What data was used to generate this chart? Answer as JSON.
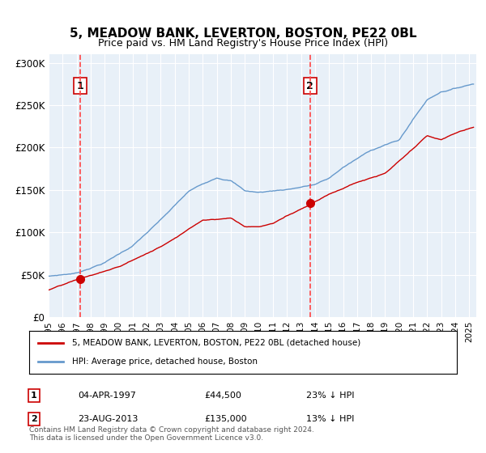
{
  "title": "5, MEADOW BANK, LEVERTON, BOSTON, PE22 0BL",
  "subtitle": "Price paid vs. HM Land Registry's House Price Index (HPI)",
  "sale1_date_num": 1997.26,
  "sale1_price": 44500,
  "sale1_label": "1",
  "sale1_display": "04-APR-1997",
  "sale1_price_display": "£44,500",
  "sale1_hpi_note": "23% ↓ HPI",
  "sale2_date_num": 2013.64,
  "sale2_price": 135000,
  "sale2_label": "2",
  "sale2_display": "23-AUG-2013",
  "sale2_price_display": "£135,000",
  "sale2_hpi_note": "13% ↓ HPI",
  "xmin": 1995.0,
  "xmax": 2025.5,
  "ymin": 0,
  "ymax": 310000,
  "background_color": "#dce8f5",
  "plot_bg_color": "#e8f0f8",
  "red_line_color": "#cc0000",
  "blue_line_color": "#6699cc",
  "dashed_line_color": "#ff4444",
  "legend_label_red": "5, MEADOW BANK, LEVERTON, BOSTON, PE22 0BL (detached house)",
  "legend_label_blue": "HPI: Average price, detached house, Boston",
  "footnote": "Contains HM Land Registry data © Crown copyright and database right 2024.\nThis data is licensed under the Open Government Licence v3.0.",
  "yticks": [
    0,
    50000,
    100000,
    150000,
    200000,
    250000,
    300000
  ],
  "ytick_labels": [
    "£0",
    "£50K",
    "£100K",
    "£150K",
    "£200K",
    "£250K",
    "£300K"
  ],
  "xticks": [
    1995,
    1996,
    1997,
    1998,
    1999,
    2000,
    2001,
    2002,
    2003,
    2004,
    2005,
    2006,
    2007,
    2008,
    2009,
    2010,
    2011,
    2012,
    2013,
    2014,
    2015,
    2016,
    2017,
    2018,
    2019,
    2020,
    2021,
    2022,
    2023,
    2024,
    2025
  ]
}
